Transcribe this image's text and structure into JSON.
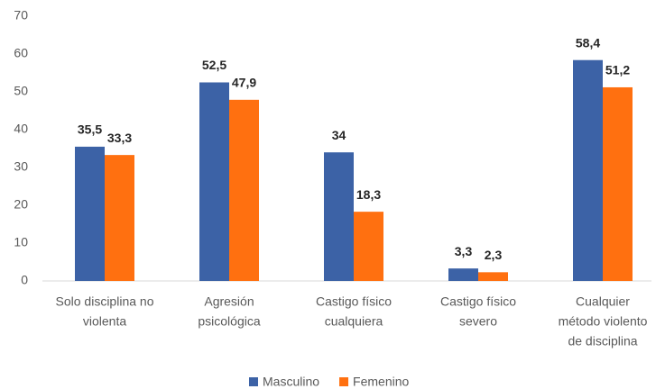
{
  "chart_data": {
    "type": "bar",
    "categories": [
      [
        "Solo disciplina no",
        "violenta"
      ],
      [
        "Agresión",
        "psicológica"
      ],
      [
        "Castigo físico",
        "cualquiera"
      ],
      [
        "Castigo físico",
        "severo"
      ],
      [
        "Cualquier",
        "método violento",
        "de disciplina"
      ]
    ],
    "series": [
      {
        "name": "Masculino",
        "color": "#3c62a6",
        "values": [
          35.5,
          52.5,
          34,
          3.3,
          58.4
        ],
        "value_labels": [
          "35,5",
          "52,5",
          "34",
          "3,3",
          "58,4"
        ]
      },
      {
        "name": "Femenino",
        "color": "#ff7010",
        "values": [
          33.3,
          47.9,
          18.3,
          2.3,
          51.2
        ],
        "value_labels": [
          "33,3",
          "47,9",
          "18,3",
          "2,3",
          "51,2"
        ]
      }
    ],
    "ylim": [
      0,
      70
    ],
    "yticks": [
      0,
      10,
      20,
      30,
      40,
      50,
      60,
      70
    ],
    "grid": false,
    "legend": "bottom"
  }
}
